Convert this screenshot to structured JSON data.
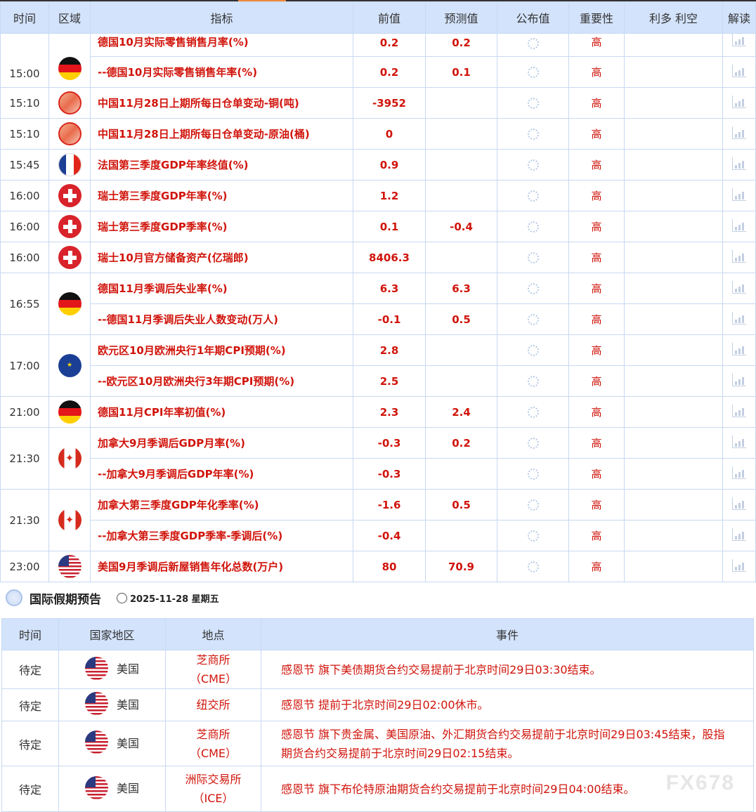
{
  "calendar": {
    "headers": [
      "时间",
      "区域",
      "指标",
      "前值",
      "预测值",
      "公布值",
      "重要性",
      "利多 利空",
      "解读"
    ],
    "groups": [
      {
        "time": "15:00",
        "flag": "germany",
        "items": [
          {
            "name": "德国10月实际零售销售月率(%)",
            "prev": "0.2",
            "fc": "0.2",
            "imp": "高"
          },
          {
            "name": "--德国10月实际零售销售年率(%)",
            "prev": "0.2",
            "fc": "0.1",
            "imp": "高"
          }
        ]
      },
      {
        "time": "15:10",
        "flag": "china",
        "items": [
          {
            "name": "中国11月28日上期所每日仓单变动-铜(吨)",
            "prev": "-3952",
            "fc": "",
            "imp": "高"
          }
        ]
      },
      {
        "time": "15:10",
        "flag": "china",
        "items": [
          {
            "name": "中国11月28日上期所每日仓单变动-原油(桶)",
            "prev": "0",
            "fc": "",
            "imp": "高"
          }
        ]
      },
      {
        "time": "15:45",
        "flag": "france",
        "items": [
          {
            "name": "法国第三季度GDP年率终值(%)",
            "prev": "0.9",
            "fc": "",
            "imp": "高"
          }
        ]
      },
      {
        "time": "16:00",
        "flag": "switzerland",
        "items": [
          {
            "name": "瑞士第三季度GDP年率(%)",
            "prev": "1.2",
            "fc": "",
            "imp": "高"
          }
        ]
      },
      {
        "time": "16:00",
        "flag": "switzerland",
        "items": [
          {
            "name": "瑞士第三季度GDP季率(%)",
            "prev": "0.1",
            "fc": "-0.4",
            "imp": "高"
          }
        ]
      },
      {
        "time": "16:00",
        "flag": "switzerland",
        "items": [
          {
            "name": "瑞士10月官方储备资产(亿瑞郎)",
            "prev": "8406.3",
            "fc": "",
            "imp": "高"
          }
        ]
      },
      {
        "time": "16:55",
        "flag": "germany",
        "items": [
          {
            "name": "德国11月季调后失业率(%)",
            "prev": "6.3",
            "fc": "6.3",
            "imp": "高"
          },
          {
            "name": "--德国11月季调后失业人数变动(万人)",
            "prev": "-0.1",
            "fc": "0.5",
            "imp": "高"
          }
        ]
      },
      {
        "time": "17:00",
        "flag": "eurozone",
        "items": [
          {
            "name": "欧元区10月欧洲央行1年期CPI预期(%)",
            "prev": "2.8",
            "fc": "",
            "imp": "高"
          },
          {
            "name": "--欧元区10月欧洲央行3年期CPI预期(%)",
            "prev": "2.5",
            "fc": "",
            "imp": "高"
          }
        ]
      },
      {
        "time": "21:00",
        "flag": "germany",
        "items": [
          {
            "name": "德国11月CPI年率初值(%)",
            "prev": "2.3",
            "fc": "2.4",
            "imp": "高"
          }
        ]
      },
      {
        "time": "21:30",
        "flag": "canada",
        "items": [
          {
            "name": "加拿大9月季调后GDP月率(%)",
            "prev": "-0.3",
            "fc": "0.2",
            "imp": "高"
          },
          {
            "name": "--加拿大9月季调后GDP年率(%)",
            "prev": "-0.3",
            "fc": "",
            "imp": "高"
          }
        ]
      },
      {
        "time": "21:30",
        "flag": "canada",
        "items": [
          {
            "name": "加拿大第三季度GDP年化季率(%)",
            "prev": "-1.6",
            "fc": "0.5",
            "imp": "高"
          },
          {
            "name": "--加拿大第三季度GDP季率-季调后(%)",
            "prev": "-0.4",
            "fc": "",
            "imp": "高"
          }
        ]
      },
      {
        "time": "23:00",
        "flag": "usa",
        "items": [
          {
            "name": "美国9月季调后新屋销售年化总数(万户)",
            "prev": "80",
            "fc": "70.9",
            "imp": "高"
          }
        ]
      }
    ]
  },
  "holidays": {
    "title": "国际假期预告",
    "date": "2025-11-28 星期五",
    "headers": [
      "时间",
      "国家地区",
      "地点",
      "事件"
    ],
    "rows": [
      {
        "time": "待定",
        "country": "美国",
        "flag": "usa",
        "place": "芝商所（CME）",
        "event": "感恩节 旗下美债期货合约交易提前于北京时间29日03:30结束。"
      },
      {
        "time": "待定",
        "country": "美国",
        "flag": "usa",
        "place": "纽交所",
        "event": "感恩节 提前于北京时间29日02:00休市。"
      },
      {
        "time": "待定",
        "country": "美国",
        "flag": "usa",
        "place": "芝商所（CME）",
        "event": "感恩节 旗下贵金属、美国原油、外汇期货合约交易提前于北京时间29日03:45结束，股指期货合约交易提前于北京时间29日02:15结束。"
      },
      {
        "time": "待定",
        "country": "美国",
        "flag": "usa",
        "place": "洲际交易所（ICE）",
        "event": "感恩节 旗下布伦特原油期货合约交易提前于北京时间29日04:00结束。"
      }
    ]
  },
  "watermark": "FX678",
  "colors": {
    "accent": "#d0140b",
    "header_bg": "#d3e3fb",
    "border": "#c7d9f2"
  }
}
